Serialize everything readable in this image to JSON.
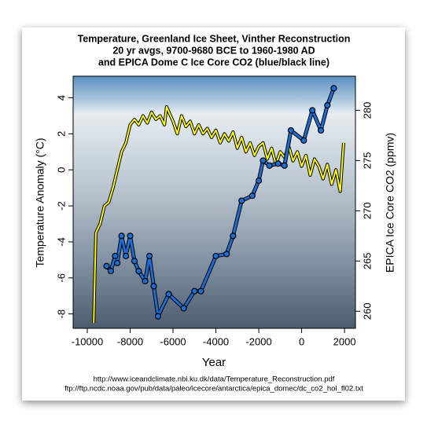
{
  "chart_data": {
    "type": "line",
    "title": [
      "Temperature, Greenland Ice Sheet, Vinther Reconstruction",
      "20 yr avgs, 9700-9680 BCE to 1960-1980 AD",
      "and EPICA Dome C Ice Core CO2 (blue/black line)"
    ],
    "xlabel": "Year",
    "ylabel": "Temperature Anomaly (°C)",
    "y2label": "EPICA Ice Core CO2 (ppmv)",
    "sources": [
      "http://www.iceandclimate.nbi.ku.dk/data/Temperature_Reconstruction.pdf",
      "ftp://ftp.ncdc.noaa.gov/pub/data/paleo/icecore/antarctica/epica_domec/dc_co2_hol_fl02.txt"
    ],
    "xlim": [
      -10660,
      2510
    ],
    "xticks": [
      -10000,
      -8000,
      -6000,
      -4000,
      -2000,
      0,
      2000
    ],
    "ylim": [
      -8.8,
      5.2
    ],
    "yticks": [
      -8,
      -6,
      -4,
      -2,
      0,
      2,
      4
    ],
    "y2lim": [
      258.3,
      283.4
    ],
    "y2ticks": [
      260,
      265,
      270,
      275,
      280
    ],
    "series": [
      {
        "name": "Temperature",
        "color": "#ffff00",
        "x": [
          -9700,
          -9600,
          -9400,
          -9200,
          -9000,
          -8800,
          -8600,
          -8400,
          -8200,
          -8000,
          -7800,
          -7600,
          -7400,
          -7200,
          -7000,
          -6800,
          -6600,
          -6400,
          -6300,
          -6000,
          -5800,
          -5600,
          -5400,
          -5200,
          -5000,
          -4800,
          -4600,
          -4400,
          -4200,
          -4000,
          -3800,
          -3600,
          -3400,
          -3200,
          -3000,
          -2800,
          -2600,
          -2400,
          -2200,
          -2000,
          -1800,
          -1600,
          -1400,
          -1200,
          -1000,
          -800,
          -600,
          -400,
          -200,
          0,
          200,
          400,
          600,
          800,
          1000,
          1200,
          1400,
          1600,
          1800,
          1960
        ],
        "values": [
          -8.5,
          -3.5,
          -3,
          -2,
          -1.8,
          -1,
          0,
          1,
          1.5,
          2.5,
          2.8,
          2.5,
          3,
          2.6,
          3.2,
          2.8,
          3,
          2.5,
          3.5,
          2.7,
          2,
          3,
          2.4,
          2.7,
          2,
          2.5,
          2,
          2.3,
          1.8,
          2.2,
          1.5,
          2,
          1.6,
          2.1,
          1.2,
          1.8,
          1,
          1.5,
          0.8,
          1.3,
          1.5,
          0.6,
          1.2,
          0.3,
          1,
          0.7,
          1.3,
          0.5,
          1,
          0.2,
          0.8,
          -0.3,
          0.6,
          0.2,
          -0.5,
          0.3,
          -0.8,
          0,
          -1.2,
          1.5
        ]
      },
      {
        "name": "CO2",
        "color": "#1a6fd6",
        "axis": "y2",
        "x": [
          -9100,
          -8900,
          -8700,
          -8600,
          -8400,
          -8200,
          -8000,
          -7800,
          -7600,
          -7300,
          -7100,
          -6900,
          -6700,
          -6200,
          -5500,
          -5000,
          -4700,
          -4000,
          -3500,
          -3200,
          -2800,
          -2300,
          -2000,
          -1800,
          -1500,
          -1100,
          -800,
          -500,
          100,
          500,
          900,
          1200,
          1500
        ],
        "values": [
          264.5,
          264,
          265.5,
          264.8,
          267.5,
          265.5,
          267.5,
          265,
          264,
          263,
          265.5,
          262.5,
          259.5,
          261.7,
          260.3,
          262,
          262,
          265.5,
          265.7,
          267.5,
          271,
          271.5,
          273,
          275,
          274.5,
          274.7,
          274.5,
          278,
          277,
          280,
          278,
          280.5,
          282.2
        ]
      }
    ]
  }
}
